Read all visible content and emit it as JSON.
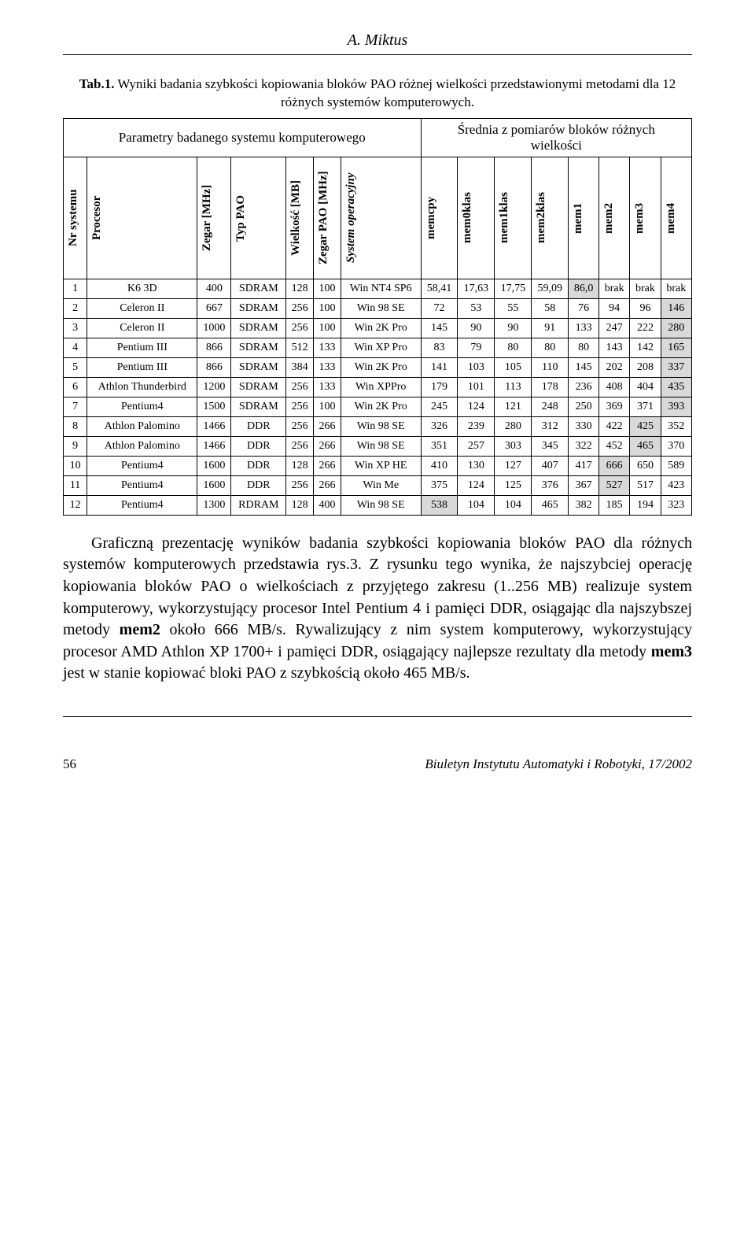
{
  "header_author": "A. Miktus",
  "caption_prefix_bold": "Tab.1.",
  "caption_rest": " Wyniki badania szybkości kopiowania bloków PAO różnej wielkości przedstawionymi metodami dla 12 różnych systemów komputerowych.",
  "param_header": "Parametry badanego systemu komputerowego",
  "speed_header_line1": "Średnia z pomiarów bloków różnych",
  "speed_header_line2": "wielkości",
  "columns": {
    "c0": "Nr systemu",
    "c1": "Procesor",
    "c2": "Zegar [MHz]",
    "c3": "Typ PAO",
    "c4": "Wielkość [MB]",
    "c5": "Zegar PAO [MHz]",
    "c6": "System operacyjny",
    "c7": "memcpy",
    "c8": "mem0klas",
    "c9": "mem1klas",
    "c10": "mem2klas",
    "c11": "mem1",
    "c12": "mem2",
    "c13": "mem3",
    "c14": "mem4"
  },
  "rows": [
    {
      "nr": "1",
      "proc": "K6 3D",
      "zegar": "400",
      "typ": "SDRAM",
      "mb": "128",
      "zpao": "100",
      "os": "Win NT4 SP6",
      "v": [
        "58,41",
        "17,63",
        "17,75",
        "59,09",
        "86,0",
        "brak",
        "brak",
        "brak"
      ],
      "shade": 4
    },
    {
      "nr": "2",
      "proc": "Celeron II",
      "zegar": "667",
      "typ": "SDRAM",
      "mb": "256",
      "zpao": "100",
      "os": "Win 98 SE",
      "v": [
        "72",
        "53",
        "55",
        "58",
        "76",
        "94",
        "96",
        "146"
      ],
      "shade": 7
    },
    {
      "nr": "3",
      "proc": "Celeron II",
      "zegar": "1000",
      "typ": "SDRAM",
      "mb": "256",
      "zpao": "100",
      "os": "Win 2K Pro",
      "v": [
        "145",
        "90",
        "90",
        "91",
        "133",
        "247",
        "222",
        "280"
      ],
      "shade": 7
    },
    {
      "nr": "4",
      "proc": "Pentium III",
      "zegar": "866",
      "typ": "SDRAM",
      "mb": "512",
      "zpao": "133",
      "os": "Win XP Pro",
      "v": [
        "83",
        "79",
        "80",
        "80",
        "80",
        "143",
        "142",
        "165"
      ],
      "shade": 7
    },
    {
      "nr": "5",
      "proc": "Pentium III",
      "zegar": "866",
      "typ": "SDRAM",
      "mb": "384",
      "zpao": "133",
      "os": "Win 2K Pro",
      "v": [
        "141",
        "103",
        "105",
        "110",
        "145",
        "202",
        "208",
        "337"
      ],
      "shade": 7
    },
    {
      "nr": "6",
      "proc": "Athlon Thunderbird",
      "zegar": "1200",
      "typ": "SDRAM",
      "mb": "256",
      "zpao": "133",
      "os": "Win XPPro",
      "v": [
        "179",
        "101",
        "113",
        "178",
        "236",
        "408",
        "404",
        "435"
      ],
      "shade": 7
    },
    {
      "nr": "7",
      "proc": "Pentium4",
      "zegar": "1500",
      "typ": "SDRAM",
      "mb": "256",
      "zpao": "100",
      "os": "Win 2K Pro",
      "v": [
        "245",
        "124",
        "121",
        "248",
        "250",
        "369",
        "371",
        "393"
      ],
      "shade": 7
    },
    {
      "nr": "8",
      "proc": "Athlon Palomino",
      "zegar": "1466",
      "typ": "DDR",
      "mb": "256",
      "zpao": "266",
      "os": "Win 98 SE",
      "v": [
        "326",
        "239",
        "280",
        "312",
        "330",
        "422",
        "425",
        "352"
      ],
      "shade": 6
    },
    {
      "nr": "9",
      "proc": "Athlon Palomino",
      "zegar": "1466",
      "typ": "DDR",
      "mb": "256",
      "zpao": "266",
      "os": "Win 98 SE",
      "v": [
        "351",
        "257",
        "303",
        "345",
        "322",
        "452",
        "465",
        "370"
      ],
      "shade": 6
    },
    {
      "nr": "10",
      "proc": "Pentium4",
      "zegar": "1600",
      "typ": "DDR",
      "mb": "128",
      "zpao": "266",
      "os": "Win XP HE",
      "v": [
        "410",
        "130",
        "127",
        "407",
        "417",
        "666",
        "650",
        "589"
      ],
      "shade": 5
    },
    {
      "nr": "11",
      "proc": "Pentium4",
      "zegar": "1600",
      "typ": "DDR",
      "mb": "256",
      "zpao": "266",
      "os": "Win Me",
      "v": [
        "375",
        "124",
        "125",
        "376",
        "367",
        "527",
        "517",
        "423"
      ],
      "shade": 5
    },
    {
      "nr": "12",
      "proc": "Pentium4",
      "zegar": "1300",
      "typ": "RDRAM",
      "mb": "128",
      "zpao": "400",
      "os": "Win 98 SE",
      "v": [
        "538",
        "104",
        "104",
        "465",
        "382",
        "185",
        "194",
        "323"
      ],
      "shade": 0
    }
  ],
  "shading_color": "#d9d9d9",
  "body_text_parts": [
    {
      "t": "Graficzną prezentację wyników badania szybkości kopiowania bloków PAO dla różnych systemów komputerowych przedstawia rys.3. Z rysunku tego wynika, że najszybciej operację kopiowania bloków PAO o wielkościach z przyjętego zakresu (1..256 MB) realizuje system komputerowy, wykorzystujący procesor Intel Pentium 4 i pamięci DDR, osiągając dla najszybszej metody ",
      "b": false
    },
    {
      "t": "mem2",
      "b": true
    },
    {
      "t": " około 666 MB/s. Rywalizujący z nim system komputerowy, wykorzystujący procesor AMD Athlon XP 1700+ i pamięci DDR, osiągający najlepsze rezultaty dla metody ",
      "b": false
    },
    {
      "t": "mem3",
      "b": true
    },
    {
      "t": " jest w stanie kopiować bloki PAO z szybkością około 465 MB/s.",
      "b": false
    }
  ],
  "footer_page": "56",
  "footer_pub": "Biuletyn Instytutu Automatyki i Robotyki, 17/2002"
}
